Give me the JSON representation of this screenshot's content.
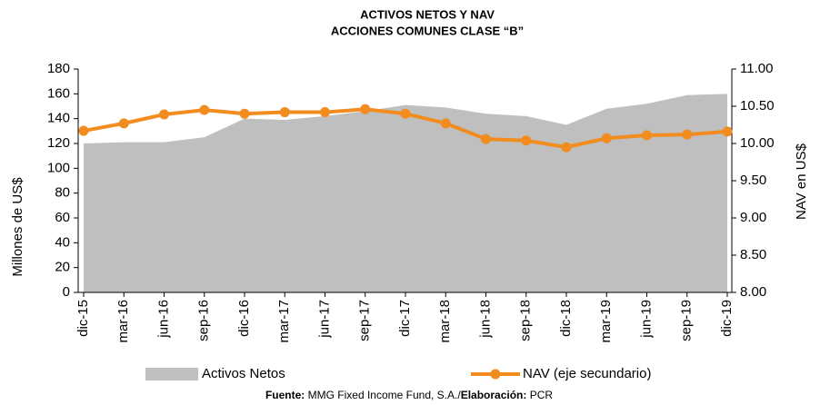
{
  "chart_data": {
    "type": "area-line",
    "title": "ACTIVOS NETOS Y NAV",
    "subtitle": "ACCIONES COMUNES CLASE “B”",
    "y_label": "Millones de US$",
    "y2_label": "NAV en US$",
    "categories": [
      "dic-15",
      "mar-16",
      "jun-16",
      "sep-16",
      "dic-16",
      "mar-17",
      "jun-17",
      "sep-17",
      "dic-17",
      "mar-18",
      "jun-18",
      "sep-18",
      "dic-18",
      "mar-19",
      "jun-19",
      "sep-19",
      "dic-19"
    ],
    "series": [
      {
        "name": "Activos Netos",
        "type": "area",
        "color": "#bfbfbf",
        "values": [
          120,
          121,
          121,
          125,
          140,
          139,
          142,
          146,
          151,
          149,
          144,
          142,
          135,
          148,
          152,
          159,
          160
        ]
      },
      {
        "name": "NAV (eje secundario)",
        "type": "line",
        "axis": "y2",
        "color": "#f28c1e",
        "values": [
          10.17,
          10.27,
          10.39,
          10.45,
          10.4,
          10.42,
          10.42,
          10.46,
          10.4,
          10.27,
          10.06,
          10.04,
          9.95,
          10.07,
          10.11,
          10.12,
          10.16
        ]
      }
    ],
    "ylim": [
      0,
      180
    ],
    "yticks": [
      0,
      20,
      40,
      60,
      80,
      100,
      120,
      140,
      160,
      180
    ],
    "y2lim": [
      8,
      11
    ],
    "y2ticks": [
      {
        "value": 8,
        "label": "8.00"
      },
      {
        "value": 8.5,
        "label": "8.50"
      },
      {
        "value": 9,
        "label": "9.00"
      },
      {
        "value": 9.5,
        "label": "9.50"
      },
      {
        "value": 10,
        "label": "10.00"
      },
      {
        "value": 10.5,
        "label": "10.50"
      },
      {
        "value": 11,
        "label": "11.00"
      }
    ],
    "source_label": "Fuente:",
    "source": "MMG Fixed Income Fund, S.A./",
    "credit_label": "Elaboración:",
    "credit": "PCR"
  }
}
